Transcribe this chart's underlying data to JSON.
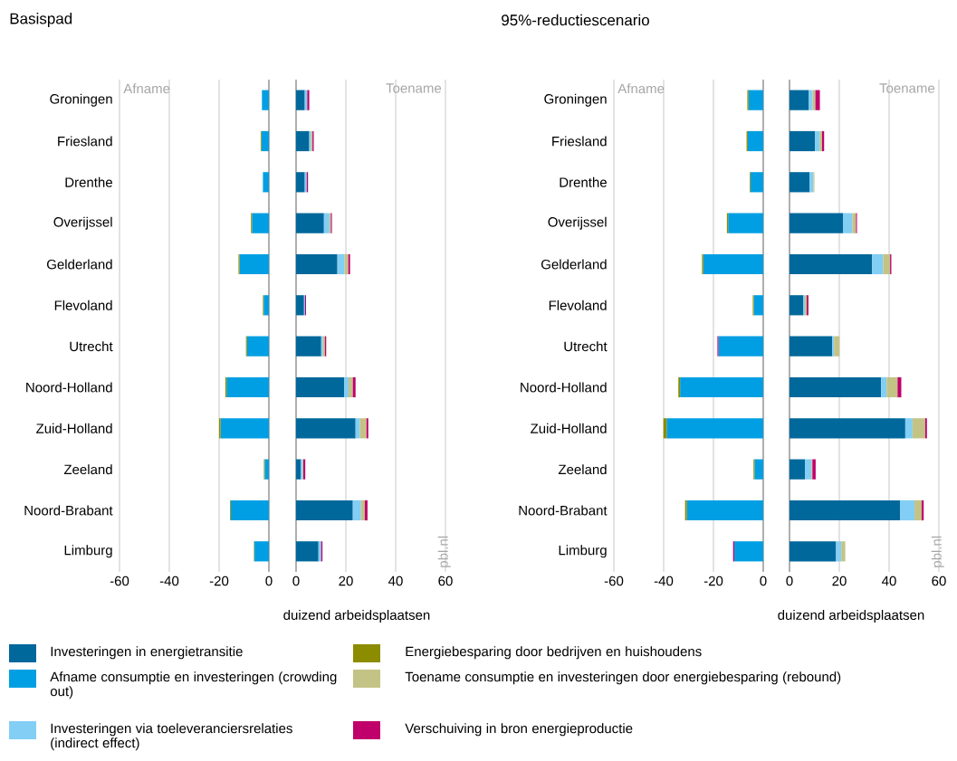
{
  "chart_data": [
    {
      "type": "bar",
      "orientation": "horizontal",
      "stacked": true,
      "title": "Basispad",
      "categories": [
        "Groningen",
        "Friesland",
        "Drenthe",
        "Overijssel",
        "Gelderland",
        "Flevoland",
        "Utrecht",
        "Noord-Holland",
        "Zuid-Holland",
        "Zeeland",
        "Noord-Brabant",
        "Limburg"
      ],
      "xlim": [
        -60,
        0
      ],
      "xticks": [
        -60,
        -40,
        -20,
        0
      ],
      "grid": "x",
      "legend": "bottom",
      "annotations": [
        "Afname"
      ],
      "series": [
        {
          "name": "Afname consumptie en investeringen (crowding out)",
          "color": "#009fe3",
          "values": [
            -2.8,
            -3.0,
            -2.4,
            -6.8,
            -11.8,
            -2.1,
            -8.8,
            -17.0,
            -19.4,
            -1.7,
            -15.3,
            -5.8
          ]
        },
        {
          "name": "Energiebesparing door bedrijven en huishoudens",
          "color": "#8c8c00",
          "values": [
            null,
            -0.3,
            null,
            -0.4,
            -0.4,
            -0.3,
            -0.4,
            -0.5,
            -0.6,
            -0.3,
            -0.3,
            -0.2
          ]
        }
      ]
    },
    {
      "type": "bar",
      "orientation": "horizontal",
      "stacked": true,
      "xlabel": "duizend arbeidsplaatsen",
      "categories": [
        null,
        null,
        null,
        null,
        null,
        null,
        null,
        null,
        null,
        null,
        null,
        null
      ],
      "xlim": [
        0,
        60
      ],
      "xticks": [
        0,
        20,
        40,
        60
      ],
      "grid": "x",
      "tick_labels": "x",
      "legend": "bottom",
      "annotations": [
        "Toename",
        "pbl.nl"
      ],
      "series": [
        {
          "name": "Investeringen in energietransitie",
          "color": "#01689b",
          "values": [
            3.5,
            5.3,
            3.5,
            11.2,
            16.6,
            3.2,
            10.1,
            19.4,
            23.9,
            1.9,
            22.8,
            9.0
          ]
        },
        {
          "name": "Investeringen via toeleveranciersrelaties (indirect effect)",
          "color": "#82cef4",
          "values": [
            1.0,
            0.7,
            0.8,
            2.2,
            2.9,
            0.4,
            0.7,
            1.7,
            1.7,
            0.8,
            3.3,
            1.1
          ]
        },
        {
          "name": "Toename consumptie en investeringen door energiebesparing (rebound)",
          "color": "#c3c386",
          "values": [
            null,
            0.6,
            null,
            0.6,
            1.5,
            null,
            0.8,
            1.7,
            2.7,
            0.2,
            1.5,
            null
          ]
        },
        {
          "name": "Verschuiving in bron energieproductie",
          "color": "#c0006b",
          "values": [
            0.8,
            0.5,
            0.5,
            0.4,
            0.7,
            0.4,
            0.5,
            1.1,
            0.7,
            0.8,
            1.1,
            0.5
          ]
        }
      ]
    },
    {
      "type": "bar",
      "orientation": "horizontal",
      "stacked": true,
      "title": "95%-reductiescenario",
      "categories": [
        "Groningen",
        "Friesland",
        "Drenthe",
        "Overijssel",
        "Gelderland",
        "Flevoland",
        "Utrecht",
        "Noord-Holland",
        "Zuid-Holland",
        "Zeeland",
        "Noord-Brabant",
        "Limburg"
      ],
      "xlim": [
        -60,
        0
      ],
      "xticks": [
        -60,
        -40,
        -20,
        0
      ],
      "grid": "x",
      "annotations": [
        "Afname"
      ],
      "series": [
        {
          "color": "#009fe3",
          "values": [
            -5.9,
            -6.2,
            -5.1,
            -14.1,
            -24.1,
            -3.8,
            -18.0,
            -33.4,
            -38.8,
            -3.5,
            -30.7,
            -11.6
          ]
        },
        {
          "color": "#8c8c00",
          "values": [
            -0.5,
            -0.5,
            -0.3,
            -0.5,
            -0.5,
            -0.4,
            null,
            -0.7,
            -1.3,
            -0.4,
            -0.7,
            null
          ]
        },
        {
          "color": "#c0006b",
          "values": [
            null,
            null,
            null,
            null,
            null,
            null,
            -0.4,
            null,
            null,
            null,
            null,
            -0.5
          ]
        }
      ]
    },
    {
      "type": "bar",
      "orientation": "horizontal",
      "stacked": true,
      "xlabel": "duizend arbeidsplaatsen",
      "categories": [
        null,
        null,
        null,
        null,
        null,
        null,
        null,
        null,
        null,
        null,
        null,
        null
      ],
      "xlim": [
        0,
        60
      ],
      "xticks": [
        0,
        20,
        40,
        60
      ],
      "grid": "x",
      "tick_labels": "x",
      "annotations": [
        "Toename",
        "pbl.nl"
      ],
      "series": [
        {
          "color": "#01689b",
          "values": [
            7.8,
            10.3,
            8.1,
            21.6,
            33.2,
            5.6,
            17.2,
            36.8,
            46.5,
            6.3,
            44.5,
            18.7
          ]
        },
        {
          "color": "#82cef4",
          "values": [
            1.5,
            1.8,
            1.5,
            3.6,
            4.4,
            0.6,
            0.7,
            2.2,
            2.9,
            2.5,
            5.7,
            2.1
          ]
        },
        {
          "color": "#c3c386",
          "values": [
            1.1,
            1.0,
            0.4,
            1.5,
            2.8,
            0.7,
            2.2,
            4.4,
            5.1,
            0.4,
            2.9,
            1.6
          ]
        },
        {
          "color": "#c0006b",
          "values": [
            1.8,
            0.8,
            null,
            0.4,
            0.5,
            0.7,
            null,
            1.5,
            0.7,
            1.3,
            0.8,
            null
          ]
        }
      ]
    }
  ]
}
